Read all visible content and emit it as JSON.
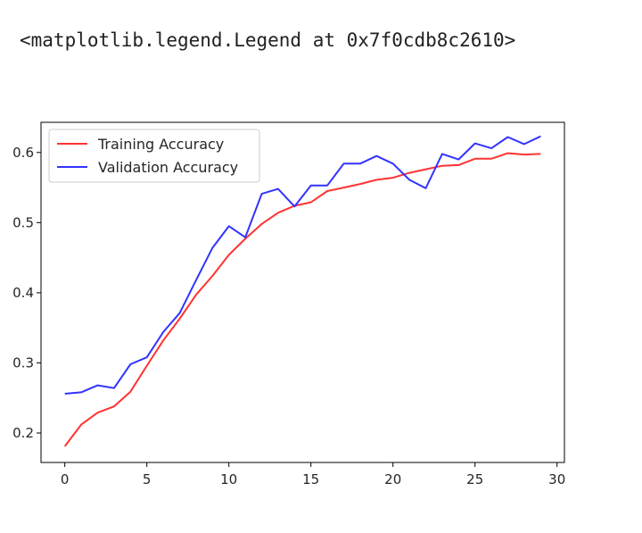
{
  "output_text": "<matplotlib.legend.Legend at 0x7f0cdb8c2610>",
  "chart_data": {
    "type": "line",
    "title": "",
    "xlabel": "",
    "ylabel": "",
    "x": [
      0,
      1,
      2,
      3,
      4,
      5,
      6,
      7,
      8,
      9,
      10,
      11,
      12,
      13,
      14,
      15,
      16,
      17,
      18,
      19,
      20,
      21,
      22,
      23,
      24,
      25,
      26,
      27,
      28,
      29
    ],
    "xlim": [
      -1.45,
      30.45
    ],
    "ylim": [
      0.158,
      0.643
    ],
    "xticks": [
      0,
      5,
      10,
      15,
      20,
      25,
      30
    ],
    "yticks": [
      0.2,
      0.3,
      0.4,
      0.5,
      0.6
    ],
    "grid": false,
    "legend_position": "upper left",
    "series": [
      {
        "name": "Training Accuracy",
        "color": "#ff3333",
        "values": [
          0.181,
          0.212,
          0.229,
          0.238,
          0.259,
          0.296,
          0.332,
          0.363,
          0.397,
          0.424,
          0.454,
          0.477,
          0.498,
          0.514,
          0.524,
          0.529,
          0.545,
          0.55,
          0.555,
          0.561,
          0.564,
          0.571,
          0.576,
          0.581,
          0.582,
          0.591,
          0.591,
          0.599,
          0.597,
          0.598
        ]
      },
      {
        "name": "Validation Accuracy",
        "color": "#3333ff",
        "values": [
          0.256,
          0.258,
          0.268,
          0.264,
          0.298,
          0.308,
          0.344,
          0.371,
          0.418,
          0.464,
          0.495,
          0.479,
          0.541,
          0.548,
          0.523,
          0.553,
          0.553,
          0.584,
          0.584,
          0.595,
          0.584,
          0.561,
          0.549,
          0.598,
          0.59,
          0.613,
          0.606,
          0.622,
          0.612,
          0.623
        ]
      }
    ]
  }
}
